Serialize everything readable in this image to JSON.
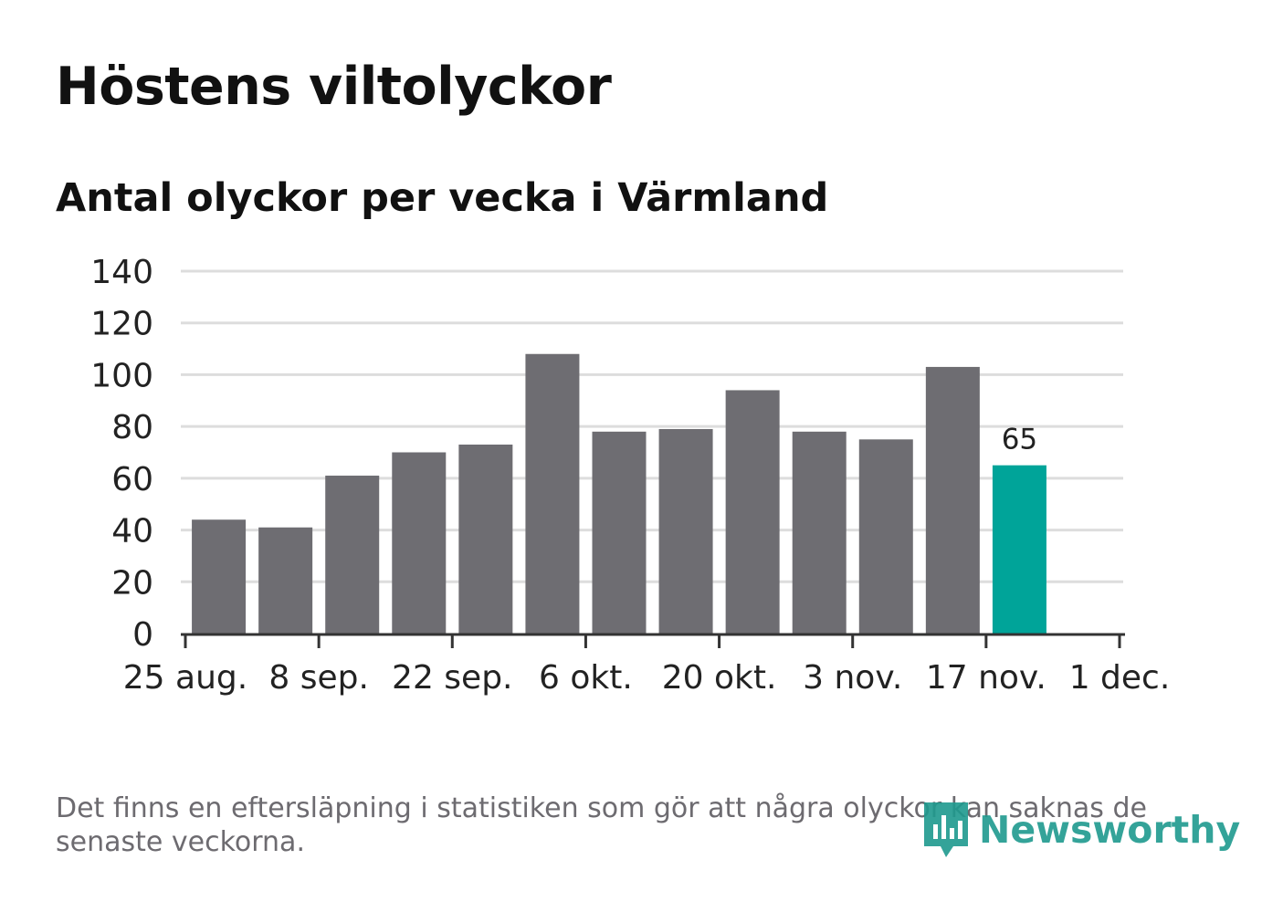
{
  "title": "Höstens viltolyckor",
  "subtitle": "Antal olyckor per vecka i Värmland",
  "footnote": "Det finns en eftersläpning i statistiken som gör att några olyckor kan saknas de senaste veckorna.",
  "logo_text": "Newsworthy",
  "colors": {
    "bar": "#6e6d72",
    "highlight": "#00a499",
    "grid": "#dddddd",
    "axis": "#333333",
    "text": "#222222"
  },
  "chart_data": {
    "type": "bar",
    "title": "Höstens viltolyckor",
    "subtitle": "Antal olyckor per vecka i Värmland",
    "xlabel": "",
    "ylabel": "",
    "ylim": [
      0,
      140
    ],
    "yticks": [
      0,
      20,
      40,
      60,
      80,
      100,
      120,
      140
    ],
    "xlim_days": [
      0,
      98
    ],
    "xticks": [
      {
        "day": 0,
        "label": "25 aug."
      },
      {
        "day": 14,
        "label": "8 sep."
      },
      {
        "day": 28,
        "label": "22 sep."
      },
      {
        "day": 42,
        "label": "6 okt."
      },
      {
        "day": 56,
        "label": "20 okt."
      },
      {
        "day": 70,
        "label": "3 nov."
      },
      {
        "day": 84,
        "label": "17 nov."
      },
      {
        "day": 98,
        "label": "1 dec."
      }
    ],
    "bars": [
      {
        "day": 7,
        "value": 44
      },
      {
        "day": 14,
        "value": 41
      },
      {
        "day": 21,
        "value": 61
      },
      {
        "day": 28,
        "value": 70
      },
      {
        "day": 35,
        "value": 73
      },
      {
        "day": 42,
        "value": 108
      },
      {
        "day": 49,
        "value": 78
      },
      {
        "day": 56,
        "value": 79
      },
      {
        "day": 63,
        "value": 94
      },
      {
        "day": 70,
        "value": 78
      },
      {
        "day": 77,
        "value": 75
      },
      {
        "day": 84,
        "value": 103
      },
      {
        "day": 91,
        "value": 65,
        "highlight": true,
        "label": "65"
      }
    ]
  }
}
